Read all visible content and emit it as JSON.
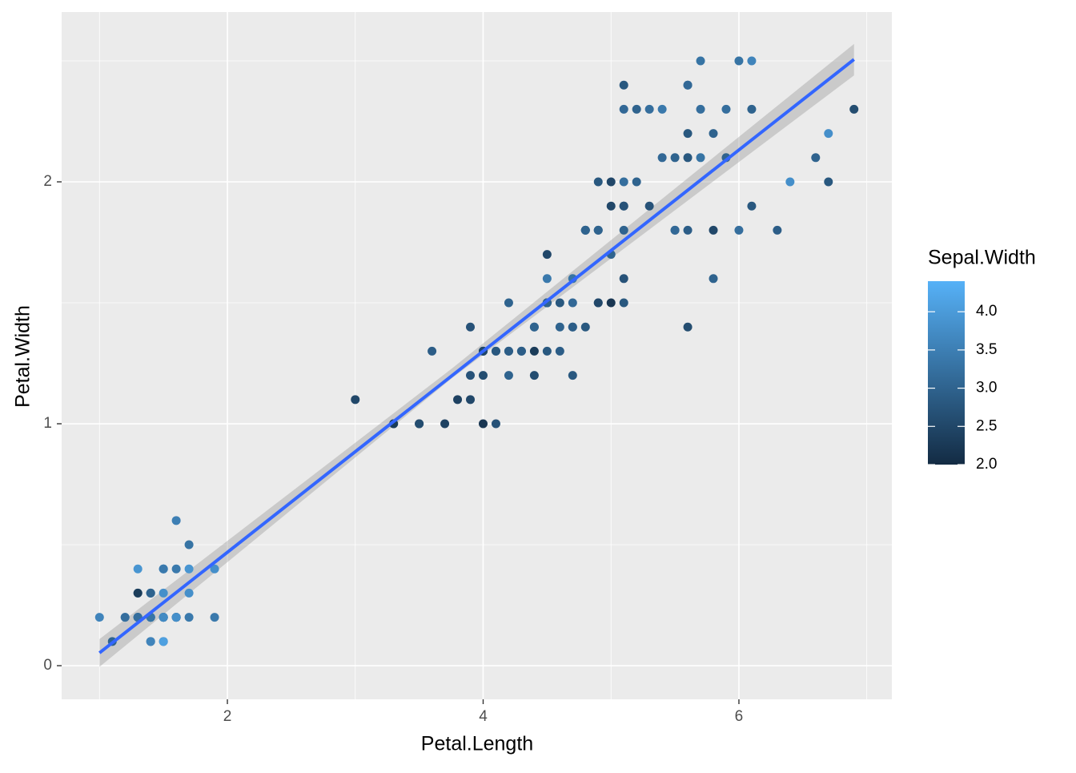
{
  "chart_data": {
    "type": "scatter",
    "x_label": "Petal.Length",
    "y_label": "Petal.Width",
    "x": [
      1.4,
      1.4,
      1.3,
      1.5,
      1.4,
      1.7,
      1.4,
      1.5,
      1.4,
      1.5,
      1.5,
      1.6,
      1.4,
      1.1,
      1.2,
      1.5,
      1.3,
      1.4,
      1.7,
      1.5,
      1.7,
      1.5,
      1.0,
      1.7,
      1.9,
      1.6,
      1.6,
      1.5,
      1.4,
      1.6,
      1.6,
      1.5,
      1.5,
      1.4,
      1.5,
      1.2,
      1.3,
      1.4,
      1.3,
      1.5,
      1.3,
      1.3,
      1.3,
      1.6,
      1.9,
      1.4,
      1.6,
      1.4,
      1.5,
      1.4,
      4.7,
      4.5,
      4.9,
      4.0,
      4.6,
      4.5,
      4.7,
      3.3,
      4.6,
      3.9,
      3.5,
      4.2,
      4.0,
      4.7,
      3.6,
      4.4,
      4.5,
      4.1,
      4.5,
      3.9,
      4.8,
      4.0,
      4.9,
      4.7,
      4.3,
      4.4,
      4.8,
      5.0,
      4.5,
      3.5,
      3.8,
      3.7,
      3.9,
      5.1,
      4.5,
      4.5,
      4.7,
      4.4,
      4.1,
      4.0,
      4.4,
      4.6,
      4.0,
      3.3,
      4.2,
      4.2,
      4.2,
      4.3,
      3.0,
      4.1,
      6.0,
      5.1,
      5.9,
      5.6,
      5.8,
      6.6,
      4.5,
      6.3,
      5.8,
      6.1,
      5.1,
      5.3,
      5.5,
      5.0,
      5.1,
      5.3,
      5.5,
      6.7,
      6.9,
      5.0,
      5.7,
      4.9,
      6.7,
      4.9,
      5.7,
      6.0,
      4.8,
      4.9,
      5.6,
      5.8,
      6.1,
      6.4,
      5.6,
      5.1,
      5.6,
      6.1,
      5.6,
      5.5,
      4.8,
      5.4,
      5.6,
      5.1,
      5.1,
      5.9,
      5.7,
      5.2,
      5.0,
      5.2,
      5.4,
      5.1
    ],
    "values": [
      0.2,
      0.2,
      0.2,
      0.2,
      0.2,
      0.4,
      0.3,
      0.2,
      0.2,
      0.1,
      0.2,
      0.2,
      0.1,
      0.1,
      0.2,
      0.4,
      0.4,
      0.3,
      0.3,
      0.3,
      0.2,
      0.4,
      0.2,
      0.5,
      0.2,
      0.2,
      0.4,
      0.2,
      0.2,
      0.2,
      0.2,
      0.4,
      0.1,
      0.2,
      0.2,
      0.2,
      0.2,
      0.1,
      0.2,
      0.2,
      0.3,
      0.3,
      0.2,
      0.6,
      0.4,
      0.3,
      0.2,
      0.2,
      0.2,
      0.2,
      1.4,
      1.5,
      1.5,
      1.3,
      1.5,
      1.3,
      1.6,
      1.0,
      1.3,
      1.4,
      1.0,
      1.5,
      1.0,
      1.4,
      1.3,
      1.4,
      1.5,
      1.0,
      1.5,
      1.1,
      1.8,
      1.3,
      1.5,
      1.2,
      1.3,
      1.4,
      1.4,
      1.7,
      1.5,
      1.0,
      1.1,
      1.0,
      1.2,
      1.6,
      1.5,
      1.6,
      1.5,
      1.3,
      1.3,
      1.3,
      1.2,
      1.4,
      1.2,
      1.0,
      1.3,
      1.2,
      1.3,
      1.3,
      1.1,
      1.3,
      2.5,
      1.9,
      2.1,
      1.8,
      2.2,
      2.1,
      1.7,
      1.8,
      1.8,
      2.5,
      2.0,
      1.9,
      2.1,
      2.0,
      2.4,
      2.3,
      1.8,
      2.2,
      2.3,
      1.5,
      2.3,
      2.0,
      2.0,
      1.8,
      2.1,
      1.8,
      1.8,
      1.8,
      2.1,
      1.6,
      1.9,
      2.0,
      2.2,
      1.5,
      1.4,
      2.3,
      2.4,
      1.8,
      1.8,
      2.1,
      2.4,
      2.3,
      1.9,
      2.3,
      2.5,
      2.3,
      1.9,
      2.0,
      2.3,
      1.8
    ],
    "color_values": [
      3.5,
      3.0,
      3.2,
      3.1,
      3.6,
      3.9,
      3.4,
      3.4,
      2.9,
      3.1,
      3.7,
      3.4,
      3.0,
      3.0,
      4.0,
      4.4,
      3.9,
      3.5,
      3.8,
      3.8,
      3.4,
      3.7,
      3.6,
      3.3,
      3.4,
      3.0,
      3.4,
      3.5,
      3.4,
      3.2,
      3.1,
      3.4,
      4.1,
      4.2,
      3.1,
      3.2,
      3.5,
      3.6,
      3.0,
      3.4,
      3.5,
      2.3,
      3.2,
      3.5,
      3.8,
      3.0,
      3.8,
      3.2,
      3.7,
      3.3,
      3.2,
      3.2,
      3.1,
      2.3,
      2.8,
      2.8,
      3.3,
      2.4,
      2.9,
      2.7,
      2.0,
      3.0,
      2.2,
      2.9,
      2.9,
      3.1,
      3.0,
      2.7,
      2.2,
      2.5,
      3.2,
      2.8,
      2.5,
      2.8,
      2.9,
      3.0,
      2.8,
      3.0,
      2.9,
      2.6,
      2.4,
      2.4,
      2.7,
      2.7,
      3.0,
      3.4,
      3.1,
      2.3,
      3.0,
      2.5,
      2.6,
      3.0,
      2.6,
      2.3,
      2.7,
      3.0,
      2.9,
      2.9,
      2.5,
      2.8,
      3.3,
      2.7,
      3.0,
      2.9,
      3.0,
      3.0,
      2.5,
      2.9,
      2.5,
      3.6,
      3.2,
      2.7,
      3.0,
      2.5,
      2.8,
      3.2,
      3.0,
      3.8,
      2.6,
      2.2,
      3.2,
      2.8,
      2.8,
      2.7,
      3.3,
      3.2,
      2.8,
      3.0,
      2.8,
      3.0,
      2.8,
      3.8,
      2.8,
      2.8,
      2.6,
      3.0,
      3.4,
      3.1,
      3.0,
      3.1,
      3.1,
      3.1,
      2.7,
      3.2,
      3.3,
      3.0,
      2.5,
      3.0,
      3.4,
      3.0
    ],
    "color_scale": {
      "title": "Sepal.Width",
      "low": "#132B43",
      "high": "#56B1F7",
      "lim": [
        2.0,
        4.4
      ],
      "ticks": [
        {
          "value": 2,
          "label": "2.0"
        },
        2.5,
        {
          "value": 3,
          "label": "3.0"
        },
        3.5,
        {
          "value": 4,
          "label": "4.0"
        }
      ]
    },
    "fit": {
      "color": "#3366FF",
      "x": [
        1.0,
        6.9
      ],
      "values": [
        0.053,
        2.506
      ]
    },
    "band": {
      "color": "#999999",
      "x": [
        1.0,
        3.76,
        6.9
      ],
      "lower": [
        -0.005,
        1.19,
        2.44
      ],
      "upper": [
        0.11,
        1.23,
        2.57
      ]
    },
    "xlim": [
      0.704,
      7.196
    ],
    "ylim": [
      -0.139,
      2.702
    ],
    "xticks": [
      2,
      4,
      6
    ],
    "yticks": [
      0,
      1,
      2
    ],
    "minor_xticks": [
      1,
      3,
      5,
      7
    ],
    "minor_yticks": [
      0.5,
      1.5,
      2.5
    ],
    "grid": true
  }
}
